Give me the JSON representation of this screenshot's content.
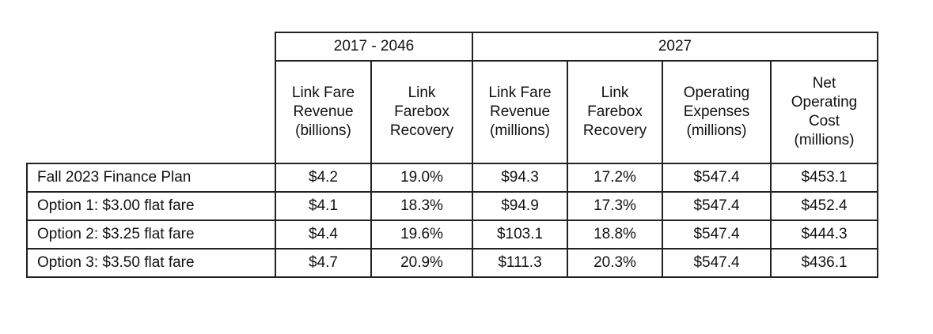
{
  "table": {
    "group_headers": [
      "2017 - 2046",
      "2027"
    ],
    "column_headers": [
      "Link Fare\nRevenue\n(billions)",
      "Link\nFarebox\nRecovery",
      "Link Fare\nRevenue\n(millions)",
      "Link\nFarebox\nRecovery",
      "Operating\nExpenses\n(millions)",
      "Net\nOperating\nCost\n(millions)"
    ],
    "rows": [
      {
        "label": "Fall 2023 Finance Plan",
        "values": [
          "$4.2",
          "19.0%",
          "$94.3",
          "17.2%",
          "$547.4",
          "$453.1"
        ]
      },
      {
        "label": "Option 1: $3.00 flat fare",
        "values": [
          "$4.1",
          "18.3%",
          "$94.9",
          "17.3%",
          "$547.4",
          "$452.4"
        ]
      },
      {
        "label": "Option 2: $3.25 flat fare",
        "values": [
          "$4.4",
          "19.6%",
          "$103.1",
          "18.8%",
          "$547.4",
          "$444.3"
        ]
      },
      {
        "label": "Option 3: $3.50 flat fare",
        "values": [
          "$4.7",
          "20.9%",
          "$111.3",
          "20.3%",
          "$547.4",
          "$436.1"
        ]
      }
    ]
  }
}
